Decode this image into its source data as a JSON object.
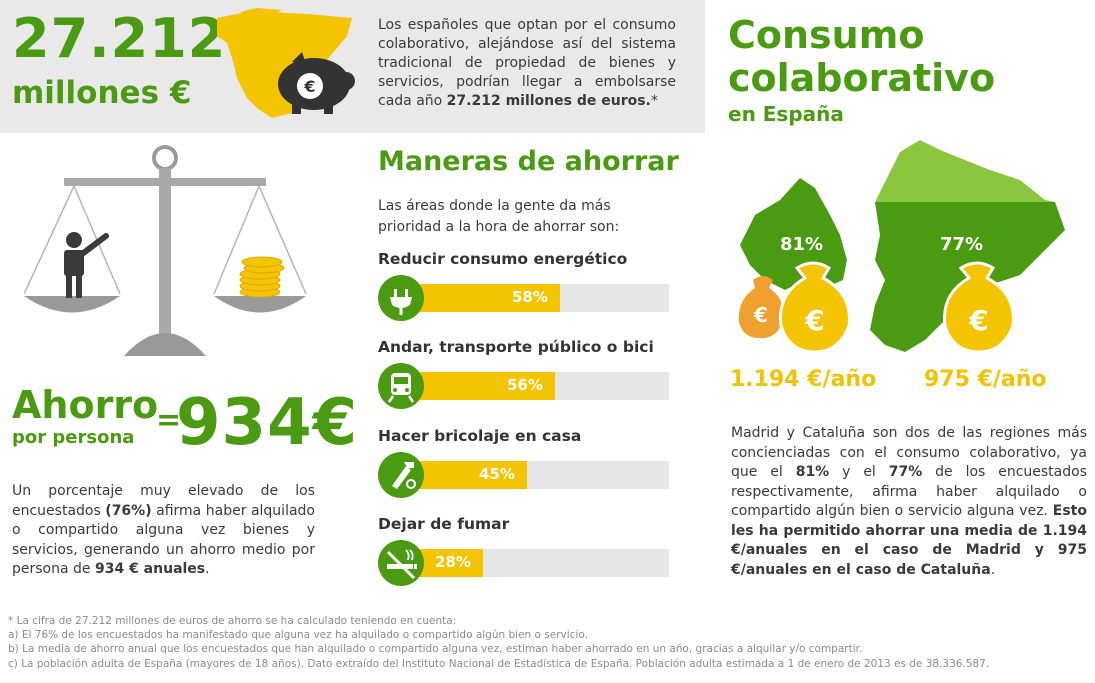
{
  "header": {
    "amount": "27.212",
    "unit": "millones €",
    "intro_text": "Los españoles que optan por el consumo colaborativo, alejándose así del sistema tradicional de propiedad de bienes y servicios, podrían llegar a embolsarse cada año ",
    "intro_bold": "27.212 millones de euros.",
    "intro_mark": "*"
  },
  "title": {
    "line1": "Consumo",
    "line2": "colaborativo",
    "subtitle": "en España"
  },
  "ahorro": {
    "word": "Ahorro",
    "subword": "por persona",
    "equals": "=",
    "amount": "934€",
    "text_1": "Un porcentaje muy elevado  de los encuestados ",
    "text_bold_1": "(76%)",
    "text_2": " afirma haber alquilado o compartido alguna vez bienes y servicios, generando un ahorro medio por persona de ",
    "text_bold_2": "934 € anuales",
    "text_3": "."
  },
  "maneras": {
    "title": "Maneras de ahorrar",
    "intro": "Las áreas donde la gente da más prioridad a la hora de ahorrar son:",
    "items": [
      {
        "label": "Reducir consumo energético",
        "value": "58%",
        "pct": 58,
        "icon": "plug-icon"
      },
      {
        "label": "Andar, transporte público o bici",
        "value": "56%",
        "pct": 56,
        "icon": "train-icon"
      },
      {
        "label": "Hacer bricolaje en casa",
        "value": "45%",
        "pct": 45,
        "icon": "tools-icon"
      },
      {
        "label": "Dejar de fumar",
        "value": "28%",
        "pct": 28,
        "icon": "no-smoking-icon"
      }
    ]
  },
  "regions": {
    "madrid_pct": "81%",
    "catalunya_pct": "77%",
    "madrid_amount": "1.194 €/año",
    "catalunya_amount": "975 €/año",
    "euro_symbol": "€",
    "text_1": "Madrid y Cataluña son dos de las regiones más concienciadas con el consumo colaborativo, ya que el ",
    "text_b1": "81%",
    "text_2": " y el ",
    "text_b2": "77%",
    "text_3": " de los encuestados respectivamente, afirma haber alquilado o compartido algún bien o servicio alguna vez. ",
    "text_b3": "Esto les ha permitido ahorrar una media de 1.194 €/anuales en el caso de Madrid y 975 €/anuales en el caso de Cataluña",
    "text_4": "."
  },
  "footnotes": [
    "* La cifra de 27.212 millones de euros de ahorro se ha calculado teniendo en cuenta:",
    "a) El 76% de los encuestados ha manifestado que alguna vez ha alquilado o compartido algún bien o servicio.",
    "b) La media de ahorro anual que los encuestados que han alquilado o compartido alguna vez, estiman haber ahorrado en un año, gracias a alquilar y/o compartir.",
    "c) La población adulta de España (mayores de 18 años). Dato extraído del Instituto Nacional de Estadística de España. Población adulta estimada a 1 de enero de 2013 es de 38.336.587."
  ],
  "colors": {
    "green": "#4a9a12",
    "light_green": "#8cc63f",
    "yellow": "#f4c400",
    "orange": "#f0a030",
    "dark_gray": "#3a3a3a"
  }
}
